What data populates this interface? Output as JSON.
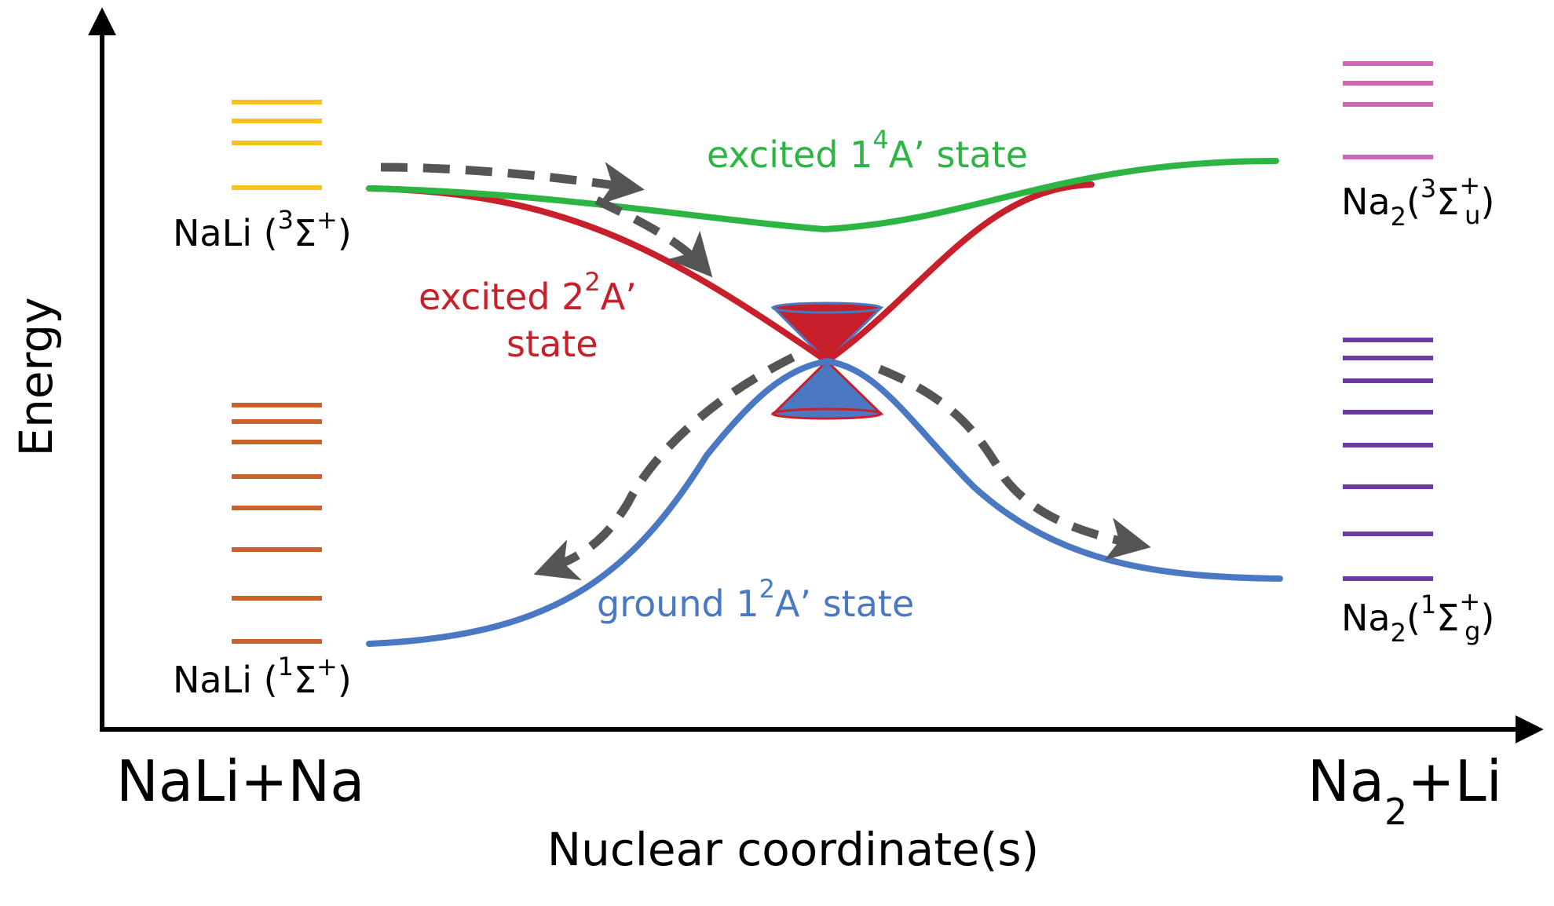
{
  "axes": {
    "y_label": "Energy",
    "x_label": "Nuclear coordinate(s)"
  },
  "endpoints": {
    "left": "NaLi+Na",
    "right": {
      "main": "Na",
      "sub": "2",
      "tail": "+Li"
    }
  },
  "states": {
    "excited_quartet": {
      "prefix": "excited 1",
      "sup": "4",
      "suffix": "A’ state",
      "color": "#2db543"
    },
    "excited_doublet": {
      "line1_prefix": "excited 2",
      "sup": "2",
      "line1_suffix": "A’",
      "line2": "state",
      "color": "#c8202a"
    },
    "ground": {
      "prefix": "ground 1",
      "sup": "2",
      "suffix": "A’ state",
      "color": "#4a78c2"
    }
  },
  "level_labels": {
    "nali_triplet": {
      "prefix": "NaLi (",
      "sup": "3",
      "sigma": "Σ",
      "sign": "+",
      "close": ")",
      "color": "#f6c31c"
    },
    "nali_singlet": {
      "prefix": "NaLi (",
      "sup": "1",
      "sigma": "Σ",
      "sign": "+",
      "close": ")",
      "color": "#c8612c"
    },
    "na2_triplet": {
      "main": "Na",
      "sub": "2",
      "open": "(",
      "sup": "3",
      "sigma": "Σ",
      "sign": "+",
      "sym": "u",
      "close": ")",
      "color": "#cc66b9"
    },
    "na2_singlet": {
      "main": "Na",
      "sub": "2",
      "open": "(",
      "sup": "1",
      "sigma": "Σ",
      "sign": "+",
      "sym": "g",
      "close": ")",
      "color": "#6b3aa3"
    }
  },
  "colors": {
    "axis": "#000000",
    "trajectory_arrows": "#555555",
    "conical_intersection_top": "#c8202a",
    "conical_intersection_bottom": "#4a78c2"
  }
}
